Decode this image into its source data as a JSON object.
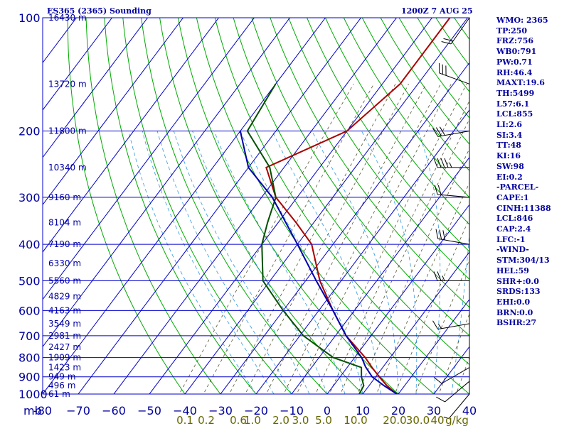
{
  "header": {
    "title": "ES365 (2365) Sounding",
    "time": "1200Z  7 AUG 25"
  },
  "stats": [
    "WMO: 2365",
    "TP:250",
    "FRZ:756",
    "WB0:791",
    "PW:0.71",
    "RH:46.4",
    "MAXT:19.6",
    "TH:5499",
    "L57:6.1",
    "LCL:855",
    "LI:2.6",
    "SI:3.4",
    "TT:48",
    "KI:16",
    "SW:98",
    "EI:0.2",
    "-PARCEL-",
    "CAPE:1",
    "CINH:11388",
    "LCL:846",
    "CAP:2.4",
    "LFC:-1",
    "-WIND-",
    "STM:304/13",
    "HEL:59",
    "SHR+:0.0",
    "SRDS:133",
    "EHI:0.0",
    "BRN:0.0",
    "BSHR:27"
  ],
  "chart_data": {
    "type": "line",
    "title": "ES365 (2365) Sounding",
    "xlabel": "",
    "ylabel": "mb",
    "xlim": [
      -80,
      40
    ],
    "ylim": [
      1000,
      100
    ],
    "y_scale": "log",
    "pressure_ticks": [
      100,
      200,
      300,
      400,
      500,
      600,
      700,
      800,
      900,
      1000
    ],
    "temp_ticks": [
      -80,
      -70,
      -60,
      -50,
      -40,
      -30,
      -20,
      -10,
      0,
      10,
      20,
      30,
      40
    ],
    "temp_tick_labels": [
      "-80",
      "−70",
      "−60",
      "−50",
      "−40",
      "−30",
      "−20",
      "−10",
      "0",
      "10",
      "20",
      "30",
      "40"
    ],
    "mixing_ratio_labels": [
      {
        "label": "0.1",
        "t": -40
      },
      {
        "label": "0.2",
        "t": -34
      },
      {
        "label": "0.6",
        "t": -25
      },
      {
        "label": "1.0",
        "t": -21
      },
      {
        "label": "2.0",
        "t": -13
      },
      {
        "label": "3.0",
        "t": -7.5
      },
      {
        "label": "5.0",
        "t": -1
      },
      {
        "label": "10.0",
        "t": 8
      },
      {
        "label": "20.0",
        "t": 19
      },
      {
        "label": "30.0",
        "t": 25.5
      },
      {
        "label": "40",
        "t": 31
      },
      {
        "label": "g/kg",
        "t": 36.5
      }
    ],
    "height_labels": [
      {
        "p": 100,
        "label": "16430 m"
      },
      {
        "p": 150,
        "label": "13720 m"
      },
      {
        "p": 200,
        "label": "11800 m"
      },
      {
        "p": 250,
        "label": "10340 m"
      },
      {
        "p": 300,
        "label": "9160 m"
      },
      {
        "p": 350,
        "label": "8104 m"
      },
      {
        "p": 400,
        "label": "7190 m"
      },
      {
        "p": 450,
        "label": "6330 m"
      },
      {
        "p": 500,
        "label": "5560 m"
      },
      {
        "p": 550,
        "label": "4829 m"
      },
      {
        "p": 600,
        "label": "4163 m"
      },
      {
        "p": 650,
        "label": "3549 m"
      },
      {
        "p": 700,
        "label": "2981 m"
      },
      {
        "p": 750,
        "label": "2427 m"
      },
      {
        "p": 800,
        "label": "1909 m"
      },
      {
        "p": 850,
        "label": "1423 m"
      },
      {
        "p": 900,
        "label": "949 m"
      },
      {
        "p": 950,
        "label": "496 m"
      },
      {
        "p": 1000,
        "label": "61 m"
      }
    ],
    "series": [
      {
        "name": "temperature",
        "color": "#aa0000",
        "points": [
          [
            1000,
            19.6
          ],
          [
            950,
            15
          ],
          [
            900,
            11
          ],
          [
            850,
            7
          ],
          [
            800,
            3
          ],
          [
            700,
            -7
          ],
          [
            600,
            -16
          ],
          [
            500,
            -26
          ],
          [
            400,
            -36
          ],
          [
            350,
            -45
          ],
          [
            300,
            -56
          ],
          [
            250,
            -65
          ],
          [
            200,
            -50
          ],
          [
            150,
            -45
          ],
          [
            100,
            -45
          ]
        ]
      },
      {
        "name": "dewpoint",
        "color": "#005000",
        "points": [
          [
            1000,
            9
          ],
          [
            950,
            8.5
          ],
          [
            900,
            6
          ],
          [
            850,
            4
          ],
          [
            800,
            -6
          ],
          [
            700,
            -19
          ],
          [
            600,
            -30
          ],
          [
            500,
            -42
          ],
          [
            400,
            -50
          ],
          [
            350,
            -53
          ],
          [
            300,
            -56
          ],
          [
            250,
            -64
          ],
          [
            200,
            -78
          ],
          [
            150,
            -80
          ]
        ]
      },
      {
        "name": "parcel",
        "color": "#0000aa",
        "points": [
          [
            1000,
            19.6
          ],
          [
            950,
            14.2
          ],
          [
            900,
            9
          ],
          [
            846,
            5
          ],
          [
            800,
            2
          ],
          [
            700,
            -7
          ],
          [
            600,
            -16
          ],
          [
            500,
            -27
          ],
          [
            400,
            -40
          ],
          [
            300,
            -57
          ],
          [
            250,
            -70
          ],
          [
            200,
            -80
          ]
        ]
      }
    ],
    "wind_barbs": [
      {
        "p": 100,
        "dir": 215,
        "spd": 20
      },
      {
        "p": 150,
        "dir": 290,
        "spd": 30
      },
      {
        "p": 200,
        "dir": 260,
        "spd": 30
      },
      {
        "p": 250,
        "dir": 270,
        "spd": 45
      },
      {
        "p": 300,
        "dir": 275,
        "spd": 20
      },
      {
        "p": 400,
        "dir": 280,
        "spd": 30
      },
      {
        "p": 500,
        "dir": 270,
        "spd": 25
      },
      {
        "p": 650,
        "dir": 260,
        "spd": 15
      },
      {
        "p": 850,
        "dir": 240,
        "spd": 10
      },
      {
        "p": 925,
        "dir": 230,
        "spd": 10
      },
      {
        "p": 1000,
        "dir": 220,
        "spd": 5
      }
    ],
    "grid": true
  }
}
